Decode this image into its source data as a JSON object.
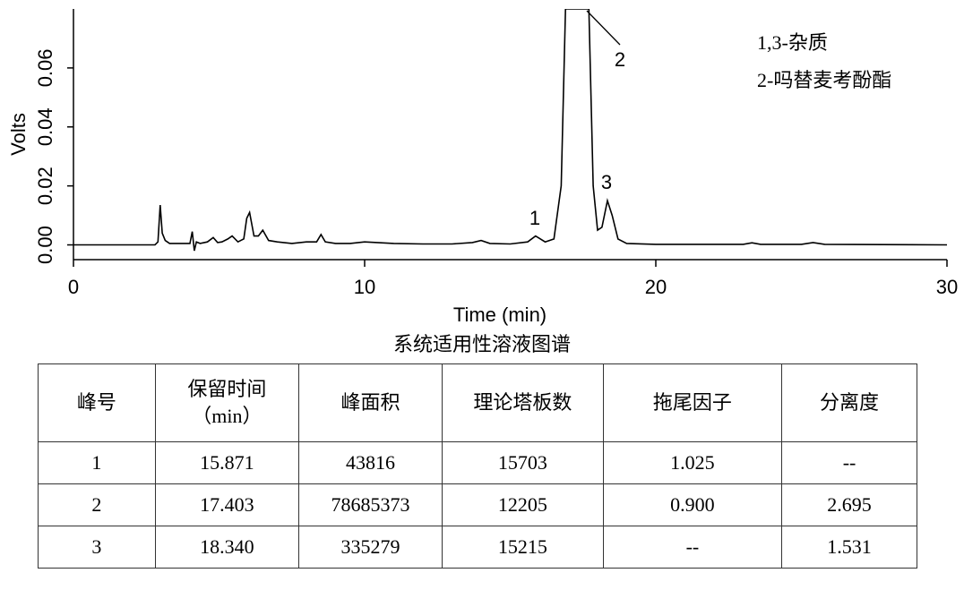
{
  "chart_data": {
    "type": "line",
    "xlabel": "Time (min)",
    "ylabel": "Volts",
    "xlim": [
      0,
      30
    ],
    "xticks": [
      0,
      10,
      20,
      30
    ],
    "ylim": [
      -0.005,
      0.08
    ],
    "yticks": [
      {
        "value": 0,
        "label": "0.00"
      },
      {
        "value": 0.02,
        "label": "0.02"
      },
      {
        "value": 0.04,
        "label": "0.04"
      },
      {
        "value": 0.06,
        "label": "0.06"
      }
    ],
    "color": "#000000",
    "x": [
      0,
      2.8,
      2.9,
      2.98,
      3.05,
      3.15,
      3.3,
      3.6,
      4.0,
      4.08,
      4.15,
      4.22,
      4.35,
      4.6,
      4.8,
      4.95,
      5.1,
      5.3,
      5.45,
      5.65,
      5.85,
      5.95,
      6.05,
      6.2,
      6.35,
      6.5,
      6.7,
      7.0,
      7.5,
      8.0,
      8.35,
      8.5,
      8.65,
      9.0,
      9.5,
      10.0,
      11,
      12,
      13,
      13.7,
      14,
      14.3,
      15,
      15.6,
      15.87,
      16.2,
      16.5,
      16.75,
      16.9,
      17.7,
      17.85,
      18.0,
      18.15,
      18.34,
      18.5,
      18.7,
      19,
      20,
      23,
      23.3,
      23.6,
      25,
      25.4,
      25.8,
      30
    ],
    "values": [
      0,
      0,
      0.001,
      0.0135,
      0.004,
      0.0015,
      0.0005,
      0.0005,
      0.0005,
      0.0045,
      -0.002,
      0.001,
      0.0005,
      0.001,
      0.0025,
      0.0008,
      0.001,
      0.002,
      0.003,
      0.001,
      0.002,
      0.009,
      0.011,
      0.003,
      0.003,
      0.005,
      0.0015,
      0.001,
      0.0005,
      0.001,
      0.001,
      0.0035,
      0.001,
      0.0005,
      0.0005,
      0.001,
      0.0005,
      0.0003,
      0.0003,
      0.0008,
      0.0015,
      0.0005,
      0.0003,
      0.001,
      0.003,
      0.001,
      0.002,
      0.02,
      0.08,
      0.08,
      0.02,
      0.005,
      0.006,
      0.015,
      0.01,
      0.002,
      0.0005,
      0.0002,
      0.0002,
      0.0007,
      0.0002,
      0.0002,
      0.0008,
      0.0002,
      0
    ],
    "annotations": [
      "1",
      "2",
      "3"
    ],
    "notes": [
      "1,3-杂质",
      "2-吗替麦考酚酯"
    ],
    "caption": "系统适用性溶液图谱"
  },
  "table": {
    "header": [
      "峰号",
      "保留时间\n（min）",
      "峰面积",
      "理论塔板数",
      "拖尾因子",
      "分离度"
    ],
    "rows": [
      [
        "1",
        "15.871",
        "43816",
        "15703",
        "1.025",
        "--"
      ],
      [
        "2",
        "17.403",
        "78685373",
        "12205",
        "0.900",
        "2.695"
      ],
      [
        "3",
        "18.340",
        "335279",
        "15215",
        "--",
        "1.531"
      ]
    ]
  }
}
